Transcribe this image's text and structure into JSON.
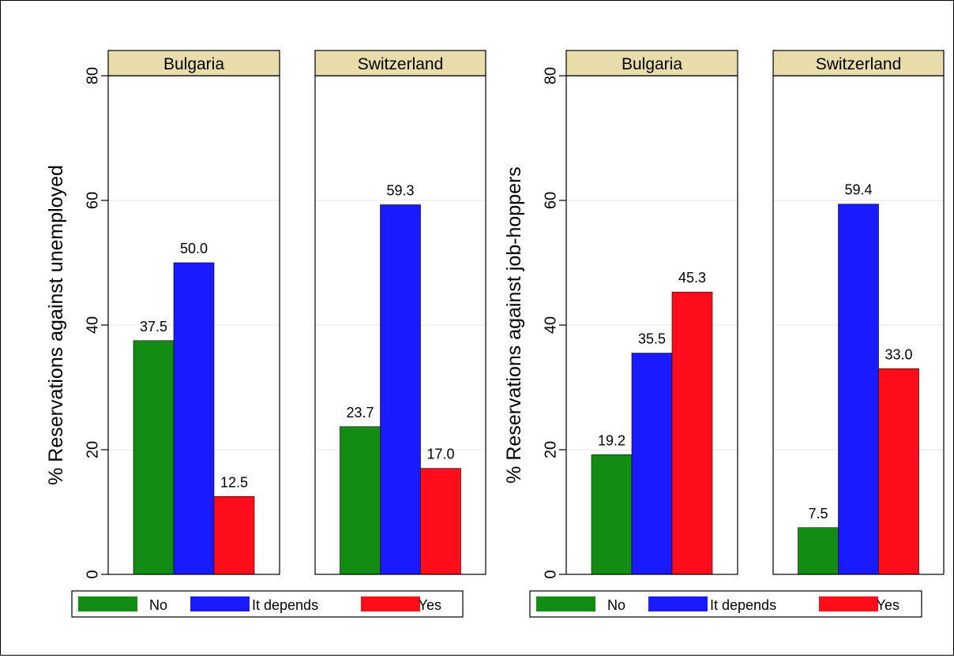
{
  "chart_data": [
    {
      "type": "bar",
      "ylabel": "% Reservations against unemployed",
      "ylim": [
        0,
        80
      ],
      "yticks": [
        0,
        20,
        40,
        60,
        80
      ],
      "grid": true,
      "legend_placement": "bottom",
      "categories": [
        "No",
        "It depends",
        "Yes"
      ],
      "panels": [
        {
          "title": "Bulgaria",
          "values": [
            37.5,
            50.0,
            12.5
          ],
          "value_labels": [
            "37.5",
            "50.0",
            "12.5"
          ]
        },
        {
          "title": "Switzerland",
          "values": [
            23.7,
            59.3,
            17.0
          ],
          "value_labels": [
            "23.7",
            "59.3",
            "17.0"
          ]
        }
      ],
      "series": [
        {
          "name": "No",
          "color": "#138c13"
        },
        {
          "name": "It depends",
          "color": "#1a1aff"
        },
        {
          "name": "Yes",
          "color": "#ff0d1a"
        }
      ]
    },
    {
      "type": "bar",
      "ylabel": "% Reservations against job-hoppers",
      "ylim": [
        0,
        80
      ],
      "yticks": [
        0,
        20,
        40,
        60,
        80
      ],
      "grid": true,
      "legend_placement": "bottom",
      "categories": [
        "No",
        "It depends",
        "Yes"
      ],
      "panels": [
        {
          "title": "Bulgaria",
          "values": [
            19.2,
            35.5,
            45.3
          ],
          "value_labels": [
            "19.2",
            "35.5",
            "45.3"
          ]
        },
        {
          "title": "Switzerland",
          "values": [
            7.5,
            59.4,
            33.0
          ],
          "value_labels": [
            "7.5",
            "59.4",
            "33.0"
          ]
        }
      ],
      "series": [
        {
          "name": "No",
          "color": "#138c13"
        },
        {
          "name": "It depends",
          "color": "#1a1aff"
        },
        {
          "name": "Yes",
          "color": "#ff0d1a"
        }
      ]
    }
  ],
  "colors": {
    "strip_fill": "#e8dcab",
    "grid": "#e6e6e6",
    "frame": "#000000"
  }
}
